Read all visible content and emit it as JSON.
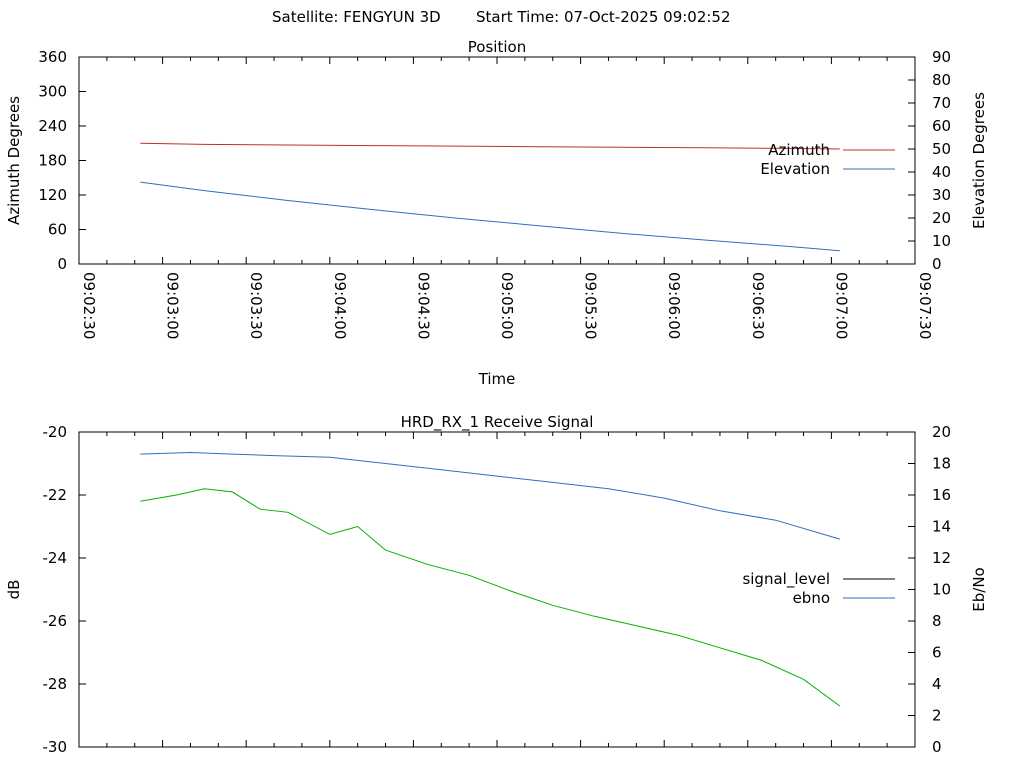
{
  "header": {
    "satellite": "Satellite: FENGYUN 3D",
    "start_time": "Start Time: 07-Oct-2025 09:02:52"
  },
  "chart_data": [
    {
      "type": "line",
      "title": "Position",
      "xlabel": "Time",
      "ylabel": "Azimuth Degrees",
      "y2label": "Elevation Degrees",
      "x_ticks": [
        "09:02:30",
        "09:03:00",
        "09:03:30",
        "09:04:00",
        "09:04:30",
        "09:05:00",
        "09:05:30",
        "09:06:00",
        "09:06:30",
        "09:07:00",
        "09:07:30"
      ],
      "xlim": [
        "09:02:30",
        "09:07:30"
      ],
      "ylim": [
        0,
        360
      ],
      "y_ticks": [
        "0",
        "60",
        "120",
        "180",
        "240",
        "300",
        "360"
      ],
      "y2lim": [
        0,
        90
      ],
      "y2_ticks": [
        "0",
        "10",
        "20",
        "30",
        "40",
        "50",
        "60",
        "70",
        "80",
        "90"
      ],
      "legend_position": "right",
      "series": [
        {
          "name": "Azimuth",
          "axis": "y",
          "color": "#c0302a",
          "x": [
            "09:02:52",
            "09:03:15",
            "09:03:45",
            "09:04:15",
            "09:04:45",
            "09:05:15",
            "09:05:45",
            "09:06:15",
            "09:06:45",
            "09:07:03"
          ],
          "values": [
            210,
            208,
            207,
            206,
            205,
            204,
            203,
            202,
            201,
            200
          ]
        },
        {
          "name": "Elevation",
          "axis": "y2",
          "color": "#2f6fbf",
          "x": [
            "09:02:52",
            "09:03:15",
            "09:03:45",
            "09:04:15",
            "09:04:45",
            "09:05:15",
            "09:05:45",
            "09:06:15",
            "09:06:45",
            "09:07:03"
          ],
          "values": [
            35.6,
            31.9,
            27.6,
            23.7,
            20.0,
            16.6,
            13.3,
            10.4,
            7.6,
            5.8
          ]
        }
      ]
    },
    {
      "type": "line",
      "title": "HRD_RX_1 Receive Signal",
      "xlabel": "",
      "ylabel": "dB",
      "y2label": "Eb/No",
      "xlim": [
        "09:02:30",
        "09:07:30"
      ],
      "ylim": [
        -30,
        -20
      ],
      "y_ticks": [
        "-20",
        "-22",
        "-24",
        "-26",
        "-28",
        "-30"
      ],
      "y2lim": [
        0,
        20
      ],
      "y2_ticks": [
        "0",
        "2",
        "4",
        "6",
        "8",
        "10",
        "12",
        "14",
        "16",
        "18",
        "20"
      ],
      "legend_position": "right",
      "series": [
        {
          "name": "signal_level",
          "axis": "y",
          "color": "#000000",
          "x": [],
          "values": []
        },
        {
          "name": "ebno",
          "axis": "y2",
          "color": "#2f6fbf",
          "x": [
            "09:02:52",
            "09:03:10",
            "09:03:25",
            "09:03:40",
            "09:04:00",
            "09:04:20",
            "09:04:40",
            "09:05:00",
            "09:05:20",
            "09:05:40",
            "09:06:00",
            "09:06:20",
            "09:06:40",
            "09:07:03"
          ],
          "values": [
            18.6,
            18.7,
            18.6,
            18.5,
            18.4,
            18.0,
            17.6,
            17.2,
            16.8,
            16.4,
            15.8,
            15.0,
            14.4,
            13.2
          ]
        },
        {
          "name": "",
          "axis": "y2",
          "color": "#00b000",
          "x": [
            "09:02:52",
            "09:03:05",
            "09:03:15",
            "09:03:25",
            "09:03:35",
            "09:03:45",
            "09:04:00",
            "09:04:10",
            "09:04:20",
            "09:04:35",
            "09:04:50",
            "09:05:05",
            "09:05:20",
            "09:05:35",
            "09:05:50",
            "09:06:05",
            "09:06:20",
            "09:06:35",
            "09:06:50",
            "09:07:03"
          ],
          "values": [
            15.6,
            16.0,
            16.4,
            16.2,
            15.1,
            14.9,
            13.5,
            14.0,
            12.5,
            11.6,
            10.9,
            9.9,
            9.0,
            8.3,
            7.7,
            7.1,
            6.3,
            5.5,
            4.3,
            2.6
          ]
        }
      ]
    }
  ]
}
